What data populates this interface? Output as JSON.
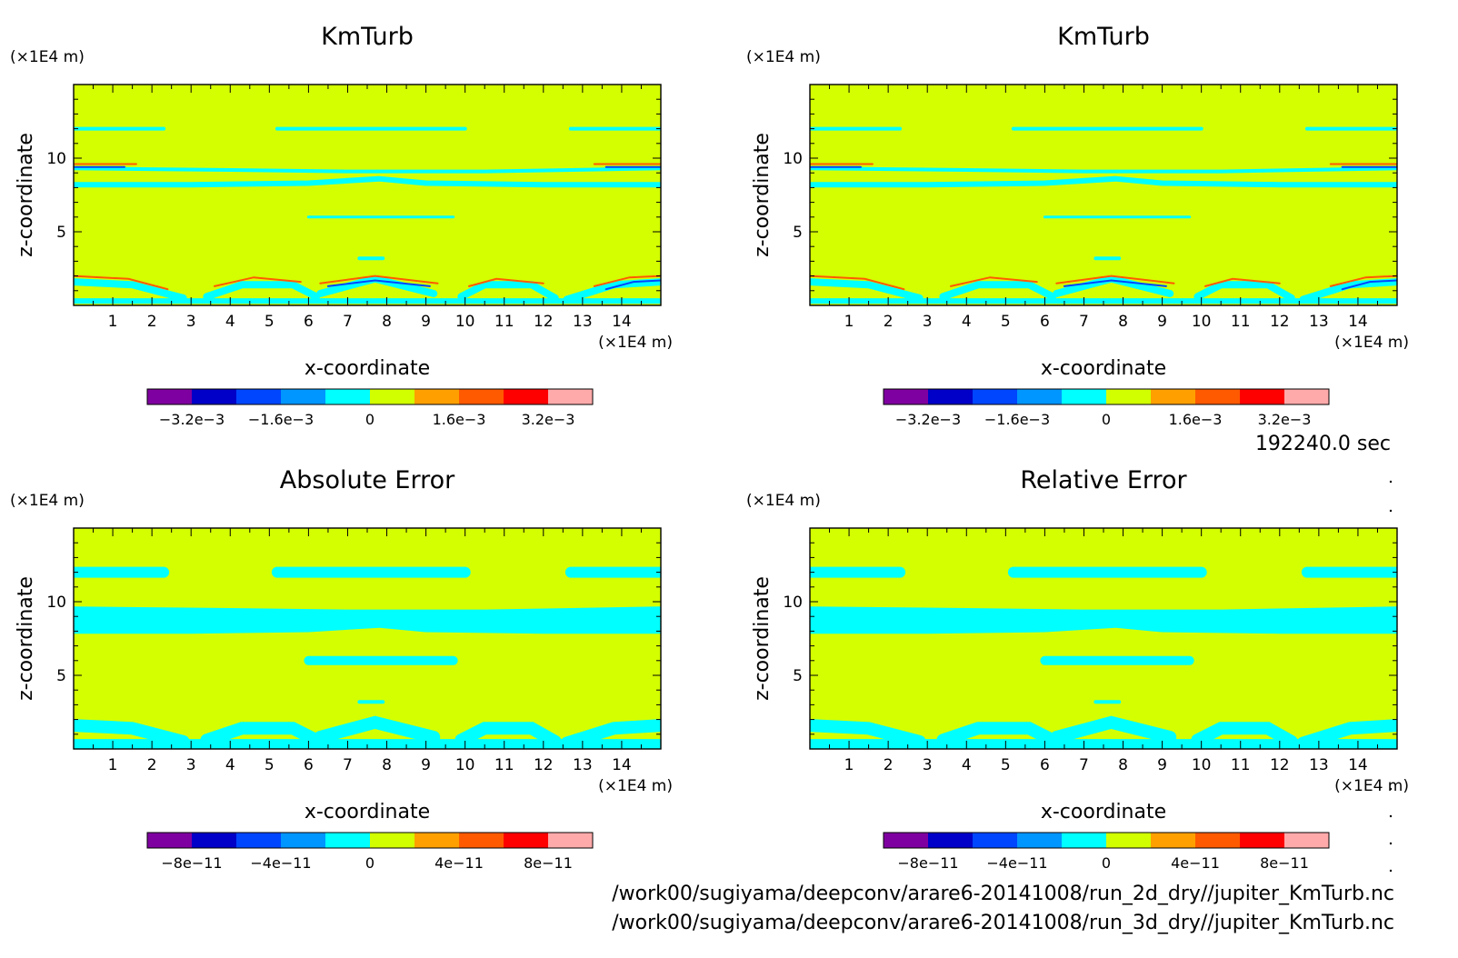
{
  "time_label": "192240.0 sec",
  "file_lines": [
    "/work00/sugiyama/deepconv/arare6-20141008/run_2d_dry//jupiter_KmTurb.nc",
    "/work00/sugiyama/deepconv/arare6-20141008/run_3d_dry//jupiter_KmTurb.nc"
  ],
  "colors": {
    "levels": [
      "#7f00a0",
      "#0000c8",
      "#0046ff",
      "#0096ff",
      "#00ffff",
      "#d2ff00",
      "#ffa000",
      "#ff5a00",
      "#ff0000",
      "#ffaaaa"
    ],
    "background": "#d4ff00",
    "contour_cyan": "#00ffff"
  },
  "chart_data": [
    {
      "type": "heatmap",
      "title": "KmTurb",
      "xlabel": "x-coordinate",
      "ylabel": "z-coordinate",
      "x_unit": "(×1E4 m)",
      "y_unit": "(×1E4 m)",
      "xlim": [
        0,
        15
      ],
      "ylim": [
        0,
        15
      ],
      "x_ticks": [
        "1",
        "2",
        "3",
        "4",
        "5",
        "6",
        "7",
        "8",
        "9",
        "10",
        "11",
        "12",
        "13",
        "14"
      ],
      "y_ticks": [
        "5",
        "10"
      ],
      "colorbar_labels": [
        "−3.2e−3",
        "−1.6e−3",
        "0",
        "1.6e−3",
        "3.2e−3"
      ],
      "colorbar_range": [
        -0.004,
        0.004
      ]
    },
    {
      "type": "heatmap",
      "title": "KmTurb",
      "xlabel": "x-coordinate",
      "ylabel": "z-coordinate",
      "x_unit": "(×1E4 m)",
      "y_unit": "(×1E4 m)",
      "xlim": [
        0,
        15
      ],
      "ylim": [
        0,
        15
      ],
      "x_ticks": [
        "1",
        "2",
        "3",
        "4",
        "5",
        "6",
        "7",
        "8",
        "9",
        "10",
        "11",
        "12",
        "13",
        "14"
      ],
      "y_ticks": [
        "5",
        "10"
      ],
      "colorbar_labels": [
        "−3.2e−3",
        "−1.6e−3",
        "0",
        "1.6e−3",
        "3.2e−3"
      ],
      "colorbar_range": [
        -0.004,
        0.004
      ]
    },
    {
      "type": "heatmap",
      "title": "Absolute Error",
      "xlabel": "x-coordinate",
      "ylabel": "z-coordinate",
      "x_unit": "(×1E4 m)",
      "y_unit": "(×1E4 m)",
      "xlim": [
        0,
        15
      ],
      "ylim": [
        0,
        15
      ],
      "x_ticks": [
        "1",
        "2",
        "3",
        "4",
        "5",
        "6",
        "7",
        "8",
        "9",
        "10",
        "11",
        "12",
        "13",
        "14"
      ],
      "y_ticks": [
        "5",
        "10"
      ],
      "colorbar_labels": [
        "−8e−11",
        "−4e−11",
        "0",
        "4e−11",
        "8e−11"
      ],
      "colorbar_range": [
        -1e-10,
        1e-10
      ]
    },
    {
      "type": "heatmap",
      "title": "Relative Error",
      "xlabel": "x-coordinate",
      "ylabel": "z-coordinate",
      "x_unit": "(×1E4 m)",
      "y_unit": "(×1E4 m)",
      "xlim": [
        0,
        15
      ],
      "ylim": [
        0,
        15
      ],
      "x_ticks": [
        "1",
        "2",
        "3",
        "4",
        "5",
        "6",
        "7",
        "8",
        "9",
        "10",
        "11",
        "12",
        "13",
        "14"
      ],
      "y_ticks": [
        "5",
        "10"
      ],
      "colorbar_labels": [
        "−8e−11",
        "−4e−11",
        "0",
        "4e−11",
        "8e−11"
      ],
      "colorbar_range": [
        -1e-10,
        1e-10
      ]
    }
  ]
}
